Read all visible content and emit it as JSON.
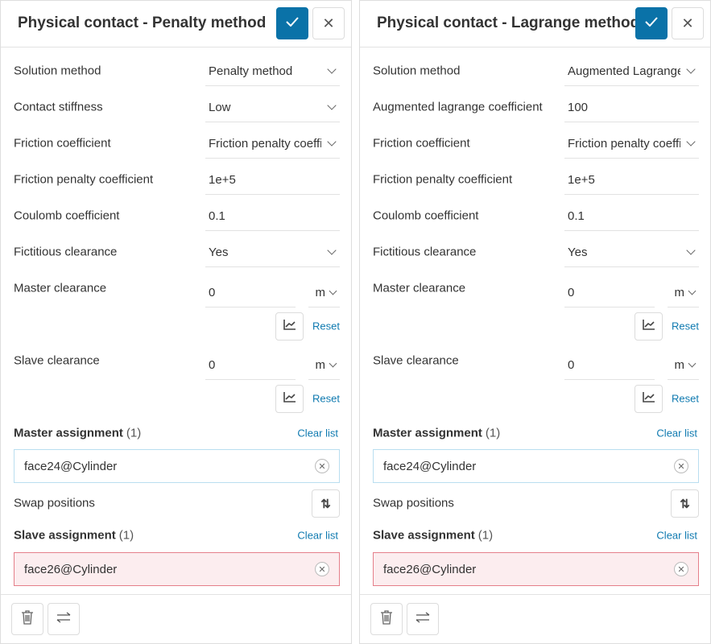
{
  "colors": {
    "accent": "#0a72a8",
    "link": "#0f7ab0",
    "master_border": "#b9def0",
    "slave_border": "#e57f8a",
    "slave_bg": "#fcedef"
  },
  "panels": [
    {
      "title": "Physical contact - Penalty method",
      "rows": [
        {
          "label": "Solution method",
          "value": "Penalty method",
          "type": "select"
        },
        {
          "label": "Contact stiffness",
          "value": "Low",
          "type": "select"
        },
        {
          "label": "Friction coefficient",
          "value": "Friction penalty coefficient",
          "type": "select"
        },
        {
          "label": "Friction penalty coefficient",
          "value": "1e+5",
          "type": "input"
        },
        {
          "label": "Coulomb coefficient",
          "value": "0.1",
          "type": "input"
        },
        {
          "label": "Fictitious clearance",
          "value": "Yes",
          "type": "select"
        }
      ],
      "master_clearance": {
        "label": "Master clearance",
        "value": "0",
        "unit": "m",
        "reset": "Reset"
      },
      "slave_clearance": {
        "label": "Slave clearance",
        "value": "0",
        "unit": "m",
        "reset": "Reset"
      },
      "master_assignment": {
        "label": "Master assignment",
        "count": "(1)",
        "clear": "Clear list",
        "item": "face24@Cylinder"
      },
      "swap_label": "Swap positions",
      "slave_assignment": {
        "label": "Slave assignment",
        "count": "(1)",
        "clear": "Clear list",
        "item": "face26@Cylinder"
      }
    },
    {
      "title": "Physical contact - Lagrange method",
      "rows": [
        {
          "label": "Solution method",
          "value": "Augmented Lagrange",
          "type": "select"
        },
        {
          "label": "Augmented lagrange coefficient",
          "value": "100",
          "type": "input"
        },
        {
          "label": "Friction coefficient",
          "value": "Friction penalty coefficient",
          "type": "select"
        },
        {
          "label": "Friction penalty coefficient",
          "value": "1e+5",
          "type": "input"
        },
        {
          "label": "Coulomb coefficient",
          "value": "0.1",
          "type": "input"
        },
        {
          "label": "Fictitious clearance",
          "value": "Yes",
          "type": "select"
        }
      ],
      "master_clearance": {
        "label": "Master clearance",
        "value": "0",
        "unit": "m",
        "reset": "Reset"
      },
      "slave_clearance": {
        "label": "Slave clearance",
        "value": "0",
        "unit": "m",
        "reset": "Reset"
      },
      "master_assignment": {
        "label": "Master assignment",
        "count": "(1)",
        "clear": "Clear list",
        "item": "face24@Cylinder"
      },
      "swap_label": "Swap positions",
      "slave_assignment": {
        "label": "Slave assignment",
        "count": "(1)",
        "clear": "Clear list",
        "item": "face26@Cylinder"
      }
    }
  ],
  "icons": {
    "confirm": "check-icon",
    "close": "close-icon",
    "chart": "chart-line-icon",
    "swap": "swap-vertical-icon",
    "delete": "trash-icon",
    "switch": "swap-horizontal-icon",
    "remove": "remove-circle-icon"
  }
}
